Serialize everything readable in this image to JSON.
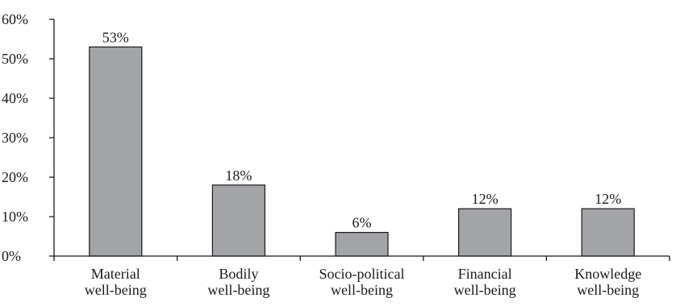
{
  "chart_data": {
    "type": "bar",
    "title": "",
    "xlabel": "",
    "ylabel": "",
    "categories": [
      [
        "Material",
        "well-being"
      ],
      [
        "Bodily",
        "well-being"
      ],
      [
        "Socio-political",
        "well-being"
      ],
      [
        "Financial",
        "well-being"
      ],
      [
        "Knowledge",
        "well-being"
      ]
    ],
    "values": [
      53,
      18,
      6,
      12,
      12
    ],
    "data_labels": [
      "53%",
      "18%",
      "6%",
      "12%",
      "12%"
    ],
    "ylim": [
      0,
      60
    ],
    "yticks": [
      0,
      10,
      20,
      30,
      40,
      50,
      60
    ],
    "ytick_labels": [
      "0%",
      "10%",
      "20%",
      "30%",
      "40%",
      "50%",
      "60%"
    ],
    "grid": false,
    "legend": "none",
    "colors": {
      "bar_fill": "#a3a4a8",
      "bar_stroke": "#1a1a1a",
      "axis": "#1a1a1a"
    }
  }
}
